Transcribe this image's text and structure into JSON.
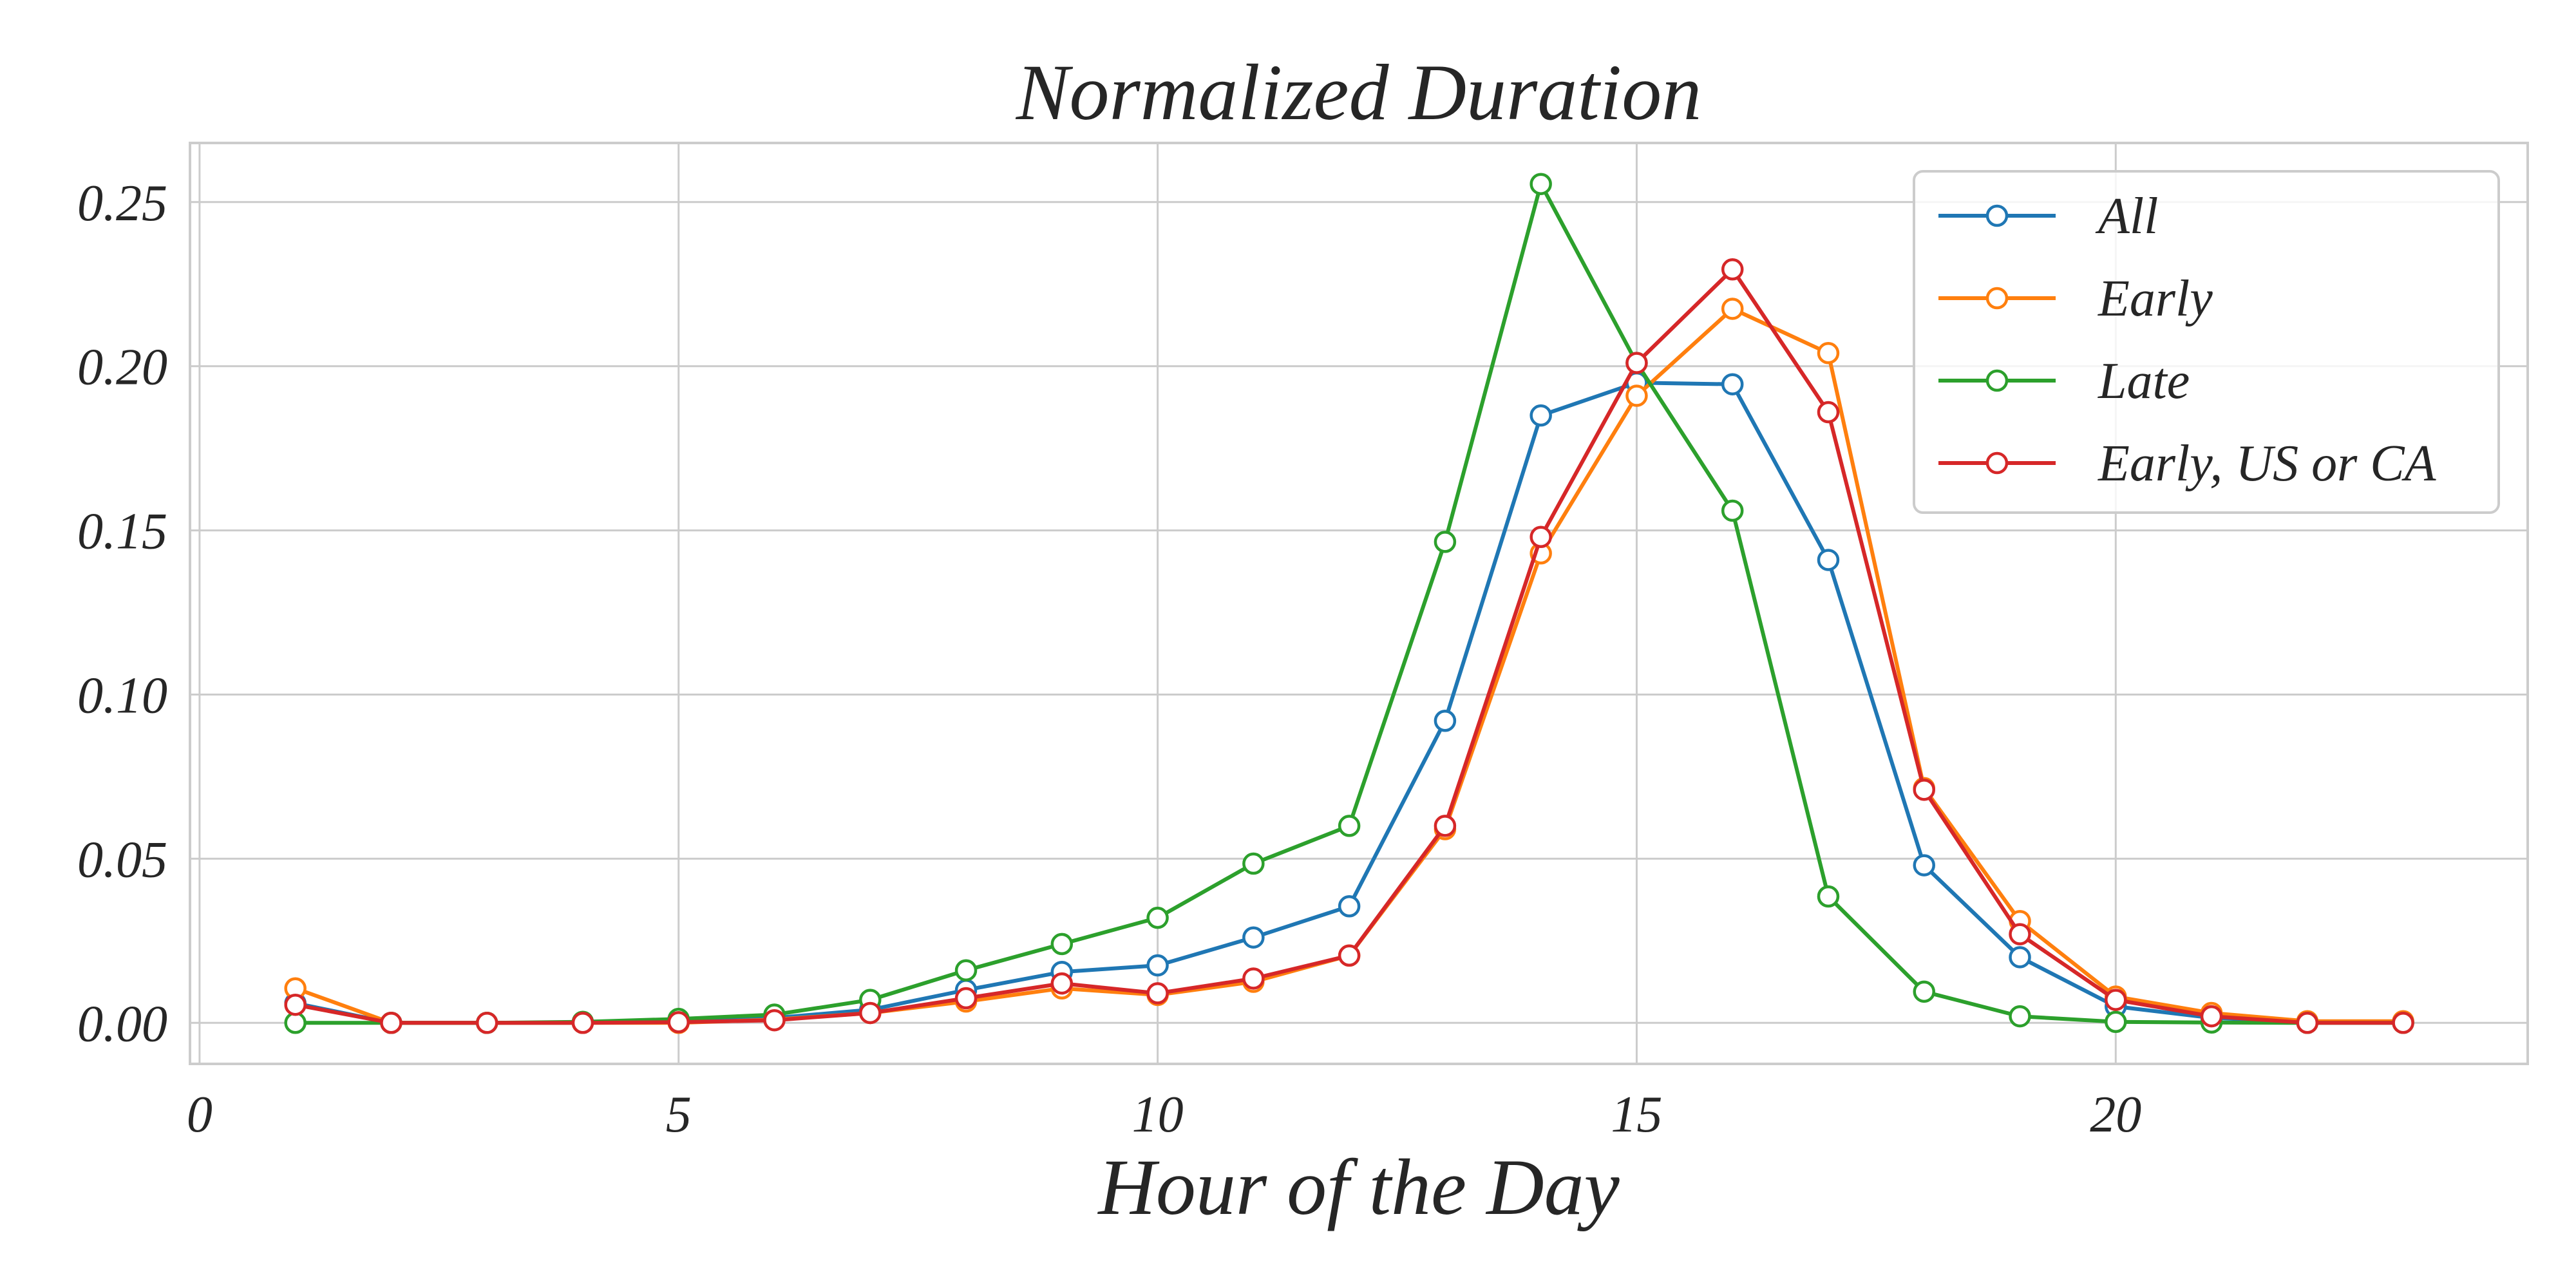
{
  "chart_data": {
    "type": "line",
    "title": "Normalized Duration",
    "xlabel": "Hour of the Day",
    "ylabel": "",
    "xlim": [
      -0.1,
      24.3
    ],
    "ylim": [
      -0.0125,
      0.268
    ],
    "xticks": [
      0,
      5,
      10,
      15,
      20
    ],
    "xtick_labels": [
      "0",
      "5",
      "10",
      "15",
      "20"
    ],
    "yticks": [
      0,
      0.05,
      0.1,
      0.15,
      0.2,
      0.25
    ],
    "ytick_labels": [
      "0.00",
      "0.05",
      "0.10",
      "0.15",
      "0.20",
      "0.25"
    ],
    "grid": true,
    "legend_position": "top-right",
    "x": [
      1,
      2,
      3,
      4,
      5,
      6,
      7,
      8,
      9,
      10,
      11,
      12,
      13,
      14,
      15,
      16,
      17,
      18,
      19,
      20,
      21,
      22,
      23
    ],
    "series": [
      {
        "name": "All",
        "color": "#1f77b4",
        "values": [
          0.006,
          0.0,
          0.0,
          0.0,
          0.0005,
          0.0015,
          0.004,
          0.01,
          0.0155,
          0.0175,
          0.026,
          0.0355,
          0.092,
          0.185,
          0.195,
          0.1945,
          0.141,
          0.048,
          0.02,
          0.005,
          0.0015,
          0.0003,
          0.0001
        ]
      },
      {
        "name": "Early",
        "color": "#ff7f0e",
        "values": [
          0.0105,
          0.0,
          0.0,
          0.0,
          0.0,
          0.001,
          0.003,
          0.0065,
          0.0105,
          0.0085,
          0.0125,
          0.0205,
          0.059,
          0.143,
          0.191,
          0.2175,
          0.204,
          0.0715,
          0.031,
          0.008,
          0.003,
          0.0005,
          0.0005
        ]
      },
      {
        "name": "Late",
        "color": "#2ca02c",
        "values": [
          0.0,
          0.0,
          0.0,
          0.0003,
          0.0012,
          0.0025,
          0.007,
          0.016,
          0.024,
          0.032,
          0.0485,
          0.06,
          0.1465,
          0.2555,
          0.201,
          0.156,
          0.0385,
          0.0095,
          0.002,
          0.0003,
          0.0001,
          0.0,
          0.0
        ]
      },
      {
        "name": "Early, US or CA",
        "color": "#d62728",
        "values": [
          0.0055,
          0.0,
          0.0,
          0.0,
          0.0002,
          0.0008,
          0.003,
          0.0075,
          0.012,
          0.009,
          0.0135,
          0.0205,
          0.06,
          0.148,
          0.201,
          0.2295,
          0.186,
          0.071,
          0.027,
          0.007,
          0.002,
          0.0,
          0.0
        ]
      }
    ]
  }
}
